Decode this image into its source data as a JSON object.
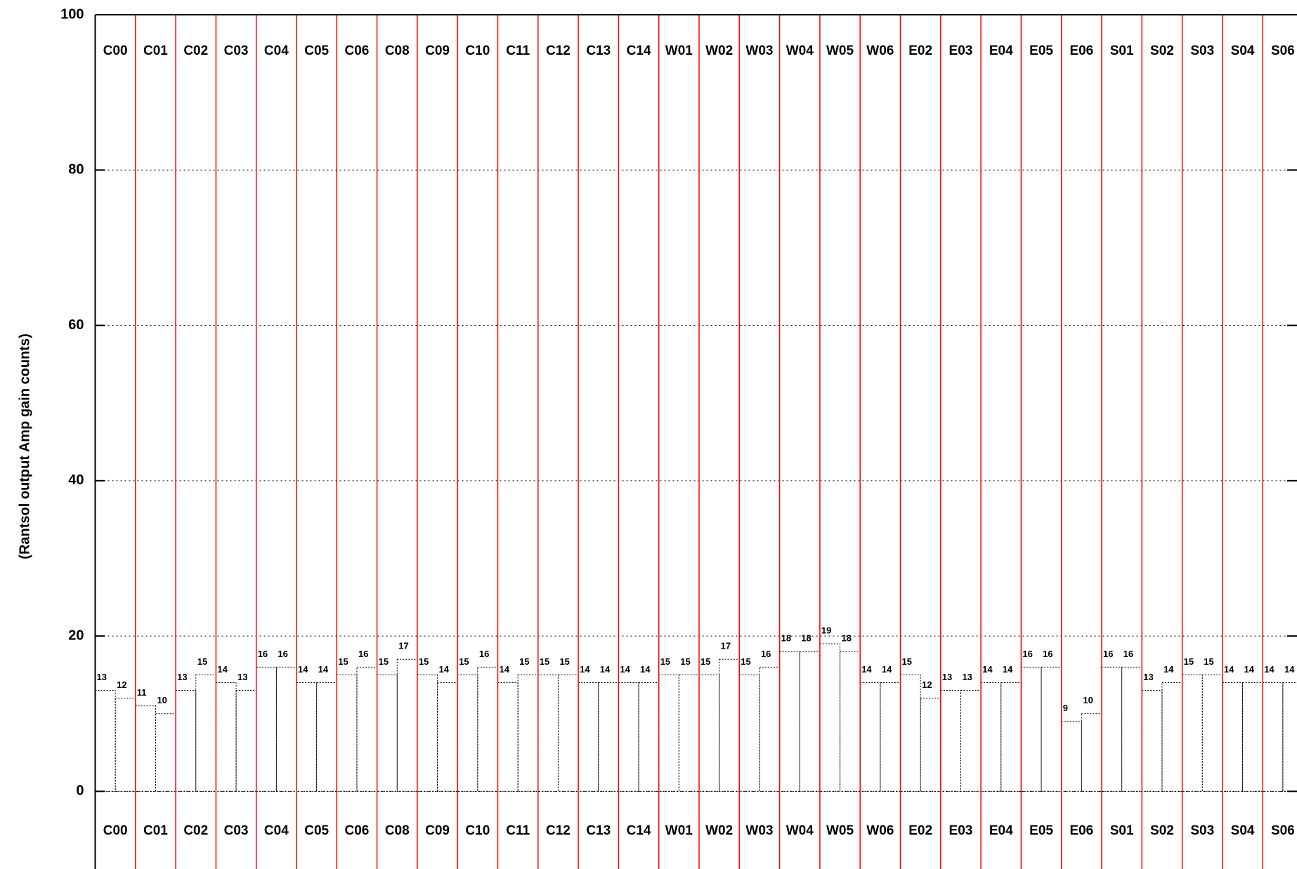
{
  "chart_data": {
    "type": "bar",
    "y_label": "(Rantsol output Amp gain counts)",
    "categories": [
      "C00",
      "C01",
      "C02",
      "C03",
      "C04",
      "C05",
      "C06",
      "C08",
      "C09",
      "C10",
      "C11",
      "C12",
      "C13",
      "C14",
      "W01",
      "W02",
      "W03",
      "W04",
      "W05",
      "W06",
      "E02",
      "E03",
      "E04",
      "E05",
      "E06",
      "S01",
      "S02",
      "S03",
      "S04",
      "S06"
    ],
    "series": [
      {
        "color": "#000000",
        "values": [
          13,
          11,
          13,
          14,
          16,
          14,
          15,
          15,
          15,
          15,
          14,
          15,
          14,
          14,
          15,
          15,
          15,
          18,
          19,
          14,
          15,
          13,
          14,
          16,
          9,
          16,
          13,
          15,
          14,
          14
        ]
      },
      {
        "color": "#000000",
        "values": [
          12,
          10,
          15,
          13,
          16,
          14,
          16,
          17,
          14,
          16,
          15,
          15,
          14,
          14,
          15,
          17,
          16,
          18,
          18,
          14,
          12,
          13,
          14,
          16,
          10,
          16,
          14,
          15,
          14,
          14
        ]
      }
    ],
    "separator_color": "#ff0000",
    "ylim": [
      -10,
      100
    ],
    "yticks": [
      0,
      20,
      40,
      60,
      80,
      100
    ],
    "grid": true
  }
}
